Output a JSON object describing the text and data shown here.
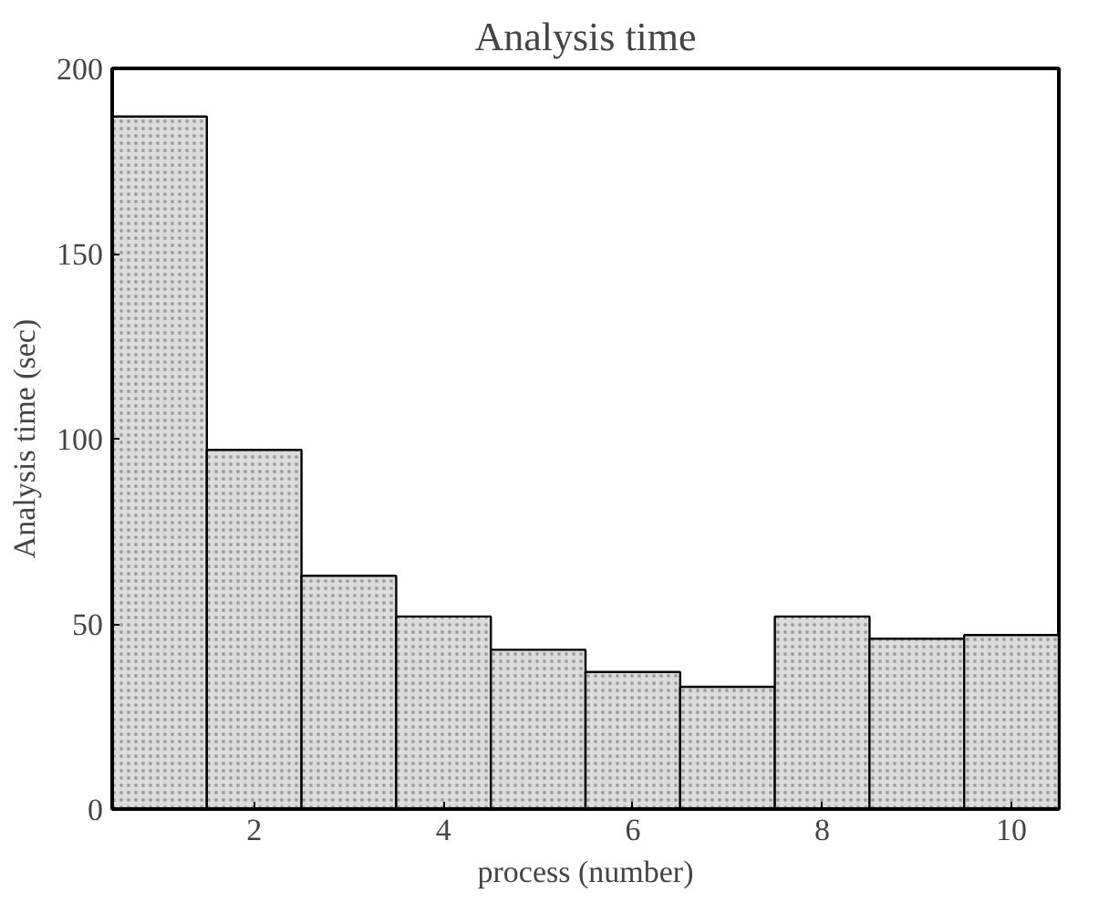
{
  "chart_data": {
    "type": "bar",
    "title": "Analysis time",
    "xlabel": "process (number)",
    "ylabel": "Analysis time (sec)",
    "x": [
      1,
      2,
      3,
      4,
      5,
      6,
      7,
      8,
      9,
      10
    ],
    "values": [
      187,
      97,
      63,
      52,
      43,
      37,
      33,
      52,
      46,
      47
    ],
    "color": "#dcdcdc",
    "xlim": [
      0.5,
      10.5
    ],
    "xticks": [
      2,
      4,
      6,
      8,
      10
    ],
    "ylim": [
      0,
      200
    ],
    "yticks": [
      0,
      50,
      100,
      150,
      200
    ],
    "grid": false
  }
}
